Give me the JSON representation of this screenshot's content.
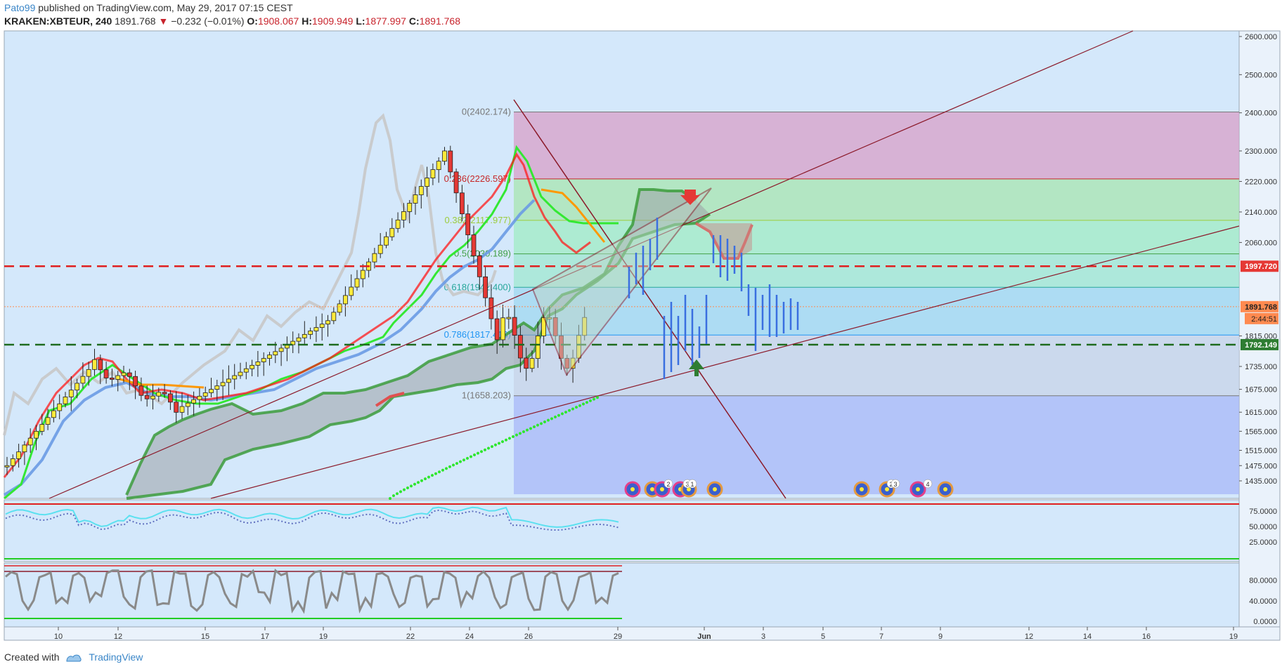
{
  "header": {
    "author": "Pato99",
    "published": "published on TradingView.com, May 29, 2017 07:15 CEST",
    "symbol": "KRAKEN:XBTEUR, 240",
    "last": "1891.768",
    "change_arrow": "▼",
    "change": "−0.232 (−0.01%)",
    "open_label": "O:",
    "open": "1908.067",
    "high_label": "H:",
    "high": "1909.949",
    "low_label": "L:",
    "low": "1877.997",
    "close_label": "C:",
    "close": "1891.768"
  },
  "footer": {
    "created_with": "Created with",
    "brand": "TradingView"
  },
  "colors": {
    "panel_bg": "#d4e8fb",
    "axis_bg": "#eaf2fb",
    "bull": "#ffeb3b",
    "bear": "#e53935",
    "tenkan": "#ff1a1a",
    "kijun": "#ff9800",
    "ema": "#6a9be4",
    "lag": "#c8c8c8",
    "cloud_green": "#3c9c3c",
    "cloud_red": "#e05050",
    "resistance": "#e02020",
    "support": "#1e6b1e",
    "projection": "#3a6fe0",
    "trend": "#8b1a2a",
    "rsi_line": "#5ce1f0",
    "rsi_signal": "#6070c0",
    "stoch": "#8a8a8a"
  },
  "chart_data": [
    {
      "type": "candlestick",
      "title": "KRAKEN:XBTEUR, 240",
      "price_axis_ticks": [
        "2600.000",
        "2500.000",
        "2400.000",
        "2300.000",
        "2220.000",
        "2140.000",
        "2060.000",
        "1980.000",
        "1895.000",
        "1815.000",
        "1735.000",
        "1675.000",
        "1615.000",
        "1565.000",
        "1515.000",
        "1475.000",
        "1435.000"
      ],
      "time_axis_ticks": [
        "10",
        "12",
        "15",
        "17",
        "19",
        "22",
        "24",
        "26",
        "29",
        "Jun",
        "3",
        "5",
        "7",
        "9",
        "12",
        "14",
        "16",
        "19"
      ],
      "time_axis_bold": "Jun",
      "fibonacci": [
        {
          "label": "0(2402.174)",
          "level": 2402.174,
          "color": "#787878"
        },
        {
          "label": "0.236(2226.597)",
          "level": 2226.597,
          "color": "#c62828"
        },
        {
          "label": "0.382(2117.977)",
          "level": 2117.977,
          "color": "#9ccc3c"
        },
        {
          "label": "0.5(2030.189)",
          "level": 2030.189,
          "color": "#43a047"
        },
        {
          "label": "0.618(1942.400)",
          "level": 1942.4,
          "color": "#26a69a"
        },
        {
          "label": "0.786(1817.413)",
          "level": 1817.413,
          "color": "#2196f3"
        },
        {
          "label": "1(1658.203)",
          "level": 1658.203,
          "color": "#787878"
        }
      ],
      "fib_bands": [
        {
          "from": 2402.174,
          "to": 2226.597,
          "color": "#d8a0c8"
        },
        {
          "from": 2226.597,
          "to": 2117.977,
          "color": "#a8e6b0"
        },
        {
          "from": 2117.977,
          "to": 2030.189,
          "color": "#a0ecc4"
        },
        {
          "from": 2030.189,
          "to": 1942.4,
          "color": "#a0e8d0"
        },
        {
          "from": 1942.4,
          "to": 1817.413,
          "color": "#a0d8f0"
        },
        {
          "from": 1817.413,
          "to": 1658.203,
          "color": "#c8d4e8"
        },
        {
          "from": 1658.203,
          "to": 1400,
          "color": "#a8b8f8"
        }
      ],
      "horizontal_levels": [
        {
          "label": "1997.720",
          "value": 1997.72,
          "color": "#e02020",
          "bg": "#e53935"
        },
        {
          "label": "1792.149",
          "value": 1792.149,
          "color": "#1e6b1e",
          "bg": "#2e7d32"
        }
      ],
      "last_price": {
        "label": "1891.768",
        "value": 1891.768,
        "countdown": "2:44:51",
        "bg": "#ff8a50"
      },
      "event_markers": [
        "2",
        "3",
        "1",
        "2",
        "3",
        "4"
      ]
    },
    {
      "type": "line",
      "title": "",
      "ticks": [
        "75.0000",
        "50.0000",
        "25.0000"
      ],
      "ylim": [
        0,
        100
      ]
    },
    {
      "type": "line",
      "title": "",
      "ticks": [
        "80.0000",
        "40.0000",
        "0.0000"
      ],
      "ylim": [
        0,
        100
      ]
    }
  ]
}
